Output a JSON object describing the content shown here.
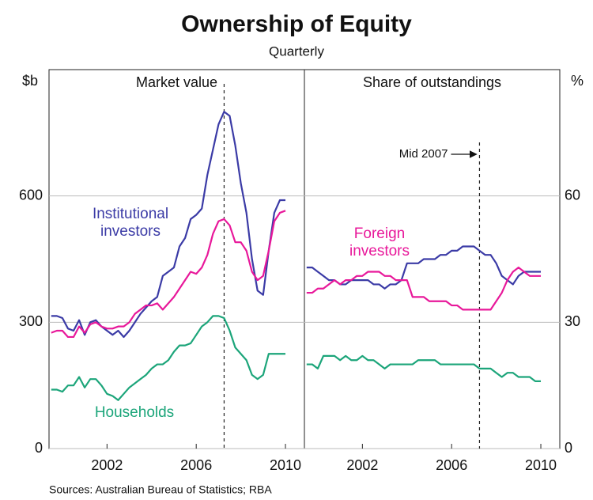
{
  "title": "Ownership of Equity",
  "subtitle": "Quarterly",
  "source": "Sources: Australian Bureau of Statistics; RBA",
  "chart_data": [
    {
      "type": "line",
      "title": "Market value",
      "y_unit": "$b",
      "x": [
        1999.5,
        1999.75,
        2000,
        2000.25,
        2000.5,
        2000.75,
        2001,
        2001.25,
        2001.5,
        2001.75,
        2002,
        2002.25,
        2002.5,
        2002.75,
        2003,
        2003.25,
        2003.5,
        2003.75,
        2004,
        2004.25,
        2004.5,
        2004.75,
        2005,
        2005.25,
        2005.5,
        2005.75,
        2006,
        2006.25,
        2006.5,
        2006.75,
        2007,
        2007.25,
        2007.5,
        2007.75,
        2008,
        2008.25,
        2008.5,
        2008.75,
        2009,
        2009.25,
        2009.5,
        2009.75,
        2010
      ],
      "xlim": [
        1999.4,
        2010.85
      ],
      "xticks": [
        2002,
        2006,
        2010
      ],
      "ylim": [
        0,
        900
      ],
      "yticks": [
        0,
        300,
        600
      ],
      "grid": true,
      "marker_x": 2007.25,
      "series": [
        {
          "name": "Institutional investors",
          "color": "#3b3ba6",
          "values": [
            315,
            315,
            310,
            285,
            280,
            305,
            270,
            300,
            305,
            290,
            280,
            270,
            280,
            265,
            280,
            300,
            320,
            335,
            350,
            360,
            410,
            420,
            430,
            480,
            500,
            545,
            555,
            570,
            650,
            710,
            770,
            800,
            790,
            720,
            630,
            560,
            450,
            375,
            365,
            470,
            560,
            590,
            590
          ]
        },
        {
          "color": "#e8189a",
          "values": [
            275,
            280,
            280,
            265,
            265,
            290,
            275,
            295,
            300,
            290,
            285,
            285,
            290,
            290,
            300,
            320,
            330,
            340,
            340,
            345,
            330,
            345,
            360,
            380,
            400,
            420,
            415,
            430,
            460,
            510,
            540,
            545,
            530,
            490,
            490,
            470,
            420,
            400,
            410,
            470,
            540,
            560,
            565
          ]
        },
        {
          "name": "Households",
          "color": "#1ca57a",
          "values": [
            140,
            140,
            135,
            150,
            150,
            170,
            145,
            165,
            165,
            150,
            130,
            125,
            115,
            130,
            145,
            155,
            165,
            175,
            190,
            200,
            200,
            210,
            230,
            245,
            245,
            250,
            270,
            290,
            300,
            315,
            315,
            310,
            280,
            240,
            225,
            210,
            175,
            165,
            175,
            225,
            225,
            225,
            225
          ]
        }
      ]
    },
    {
      "type": "line",
      "title": "Share of outstandings",
      "y_unit": "%",
      "annotation": "Mid 2007",
      "x": [
        1999.5,
        1999.75,
        2000,
        2000.25,
        2000.5,
        2000.75,
        2001,
        2001.25,
        2001.5,
        2001.75,
        2002,
        2002.25,
        2002.5,
        2002.75,
        2003,
        2003.25,
        2003.5,
        2003.75,
        2004,
        2004.25,
        2004.5,
        2004.75,
        2005,
        2005.25,
        2005.5,
        2005.75,
        2006,
        2006.25,
        2006.5,
        2006.75,
        2007,
        2007.25,
        2007.5,
        2007.75,
        2008,
        2008.25,
        2008.5,
        2008.75,
        2009,
        2009.25,
        2009.5,
        2009.75,
        2010
      ],
      "xlim": [
        1999.4,
        2010.85
      ],
      "xticks": [
        2002,
        2006,
        2010
      ],
      "ylim": [
        0,
        90
      ],
      "yticks": [
        0,
        30,
        60
      ],
      "grid": true,
      "marker_x": 2007.25,
      "series": [
        {
          "color": "#3b3ba6",
          "values": [
            43,
            43,
            42,
            41,
            40,
            40,
            39,
            39,
            40,
            40,
            40,
            40,
            39,
            39,
            38,
            39,
            39,
            40,
            44,
            44,
            44,
            45,
            45,
            45,
            46,
            46,
            47,
            47,
            48,
            48,
            48,
            47,
            46,
            46,
            44,
            41,
            40,
            39,
            41,
            42,
            42,
            42,
            42
          ]
        },
        {
          "name": "Foreign investors",
          "color": "#e8189a",
          "values": [
            37,
            37,
            38,
            38,
            39,
            40,
            39,
            40,
            40,
            41,
            41,
            42,
            42,
            42,
            41,
            41,
            40,
            40,
            40,
            36,
            36,
            36,
            35,
            35,
            35,
            35,
            34,
            34,
            33,
            33,
            33,
            33,
            33,
            33,
            35,
            37,
            40,
            42,
            43,
            42,
            41,
            41,
            41
          ]
        },
        {
          "color": "#1ca57a",
          "values": [
            20,
            20,
            19,
            22,
            22,
            22,
            21,
            22,
            21,
            21,
            22,
            21,
            21,
            20,
            19,
            20,
            20,
            20,
            20,
            20,
            21,
            21,
            21,
            21,
            20,
            20,
            20,
            20,
            20,
            20,
            20,
            19,
            19,
            19,
            18,
            17,
            18,
            18,
            17,
            17,
            17,
            16,
            16
          ]
        }
      ]
    }
  ]
}
